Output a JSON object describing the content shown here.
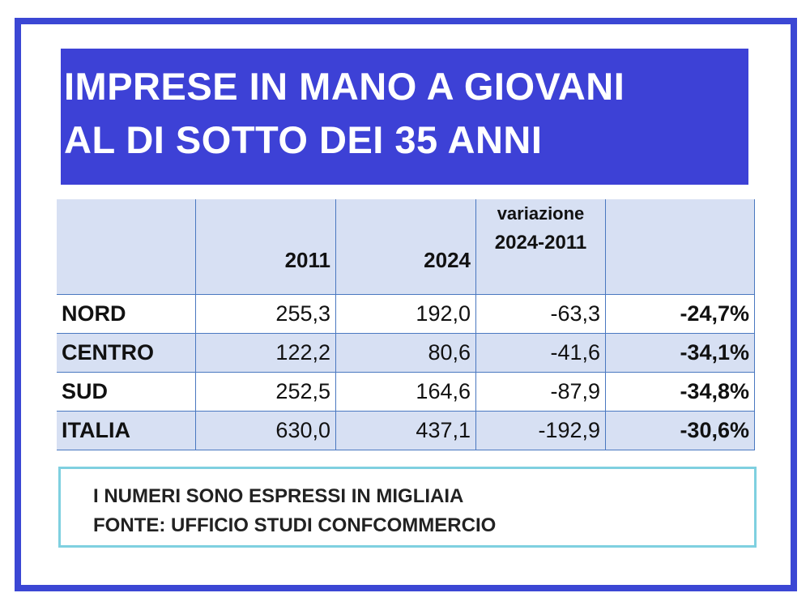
{
  "title": {
    "line1": "IMPRESE IN MANO A GIOVANI",
    "line2": "AL DI SOTTO DEI 35 ANNI"
  },
  "table": {
    "headers": [
      "",
      "2011",
      "2024",
      "variazione",
      "2024-2011",
      ""
    ],
    "rows": [
      {
        "region": "NORD",
        "y2011": "255,3",
        "y2024": "192,0",
        "diff": "-63,3",
        "pct": "-24,7%"
      },
      {
        "region": "CENTRO",
        "y2011": "122,2",
        "y2024": "80,6",
        "diff": "-41,6",
        "pct": "-34,1%"
      },
      {
        "region": "SUD",
        "y2011": "252,5",
        "y2024": "164,6",
        "diff": "-87,9",
        "pct": "-34,8%"
      },
      {
        "region": "ITALIA",
        "y2011": "630,0",
        "y2024": "437,1",
        "diff": "-192,9",
        "pct": "-30,6%"
      }
    ]
  },
  "note": {
    "line1": "I NUMERI SONO ESPRESSI IN MIGLIAIA",
    "line2": "FONTE: UFFICIO STUDI CONFCOMMERCIO"
  },
  "colors": {
    "frame": "#3b47d4",
    "title_bg": "#3d41d6",
    "row_alt": "#d7e0f3",
    "note_border": "#7fd0e0"
  }
}
